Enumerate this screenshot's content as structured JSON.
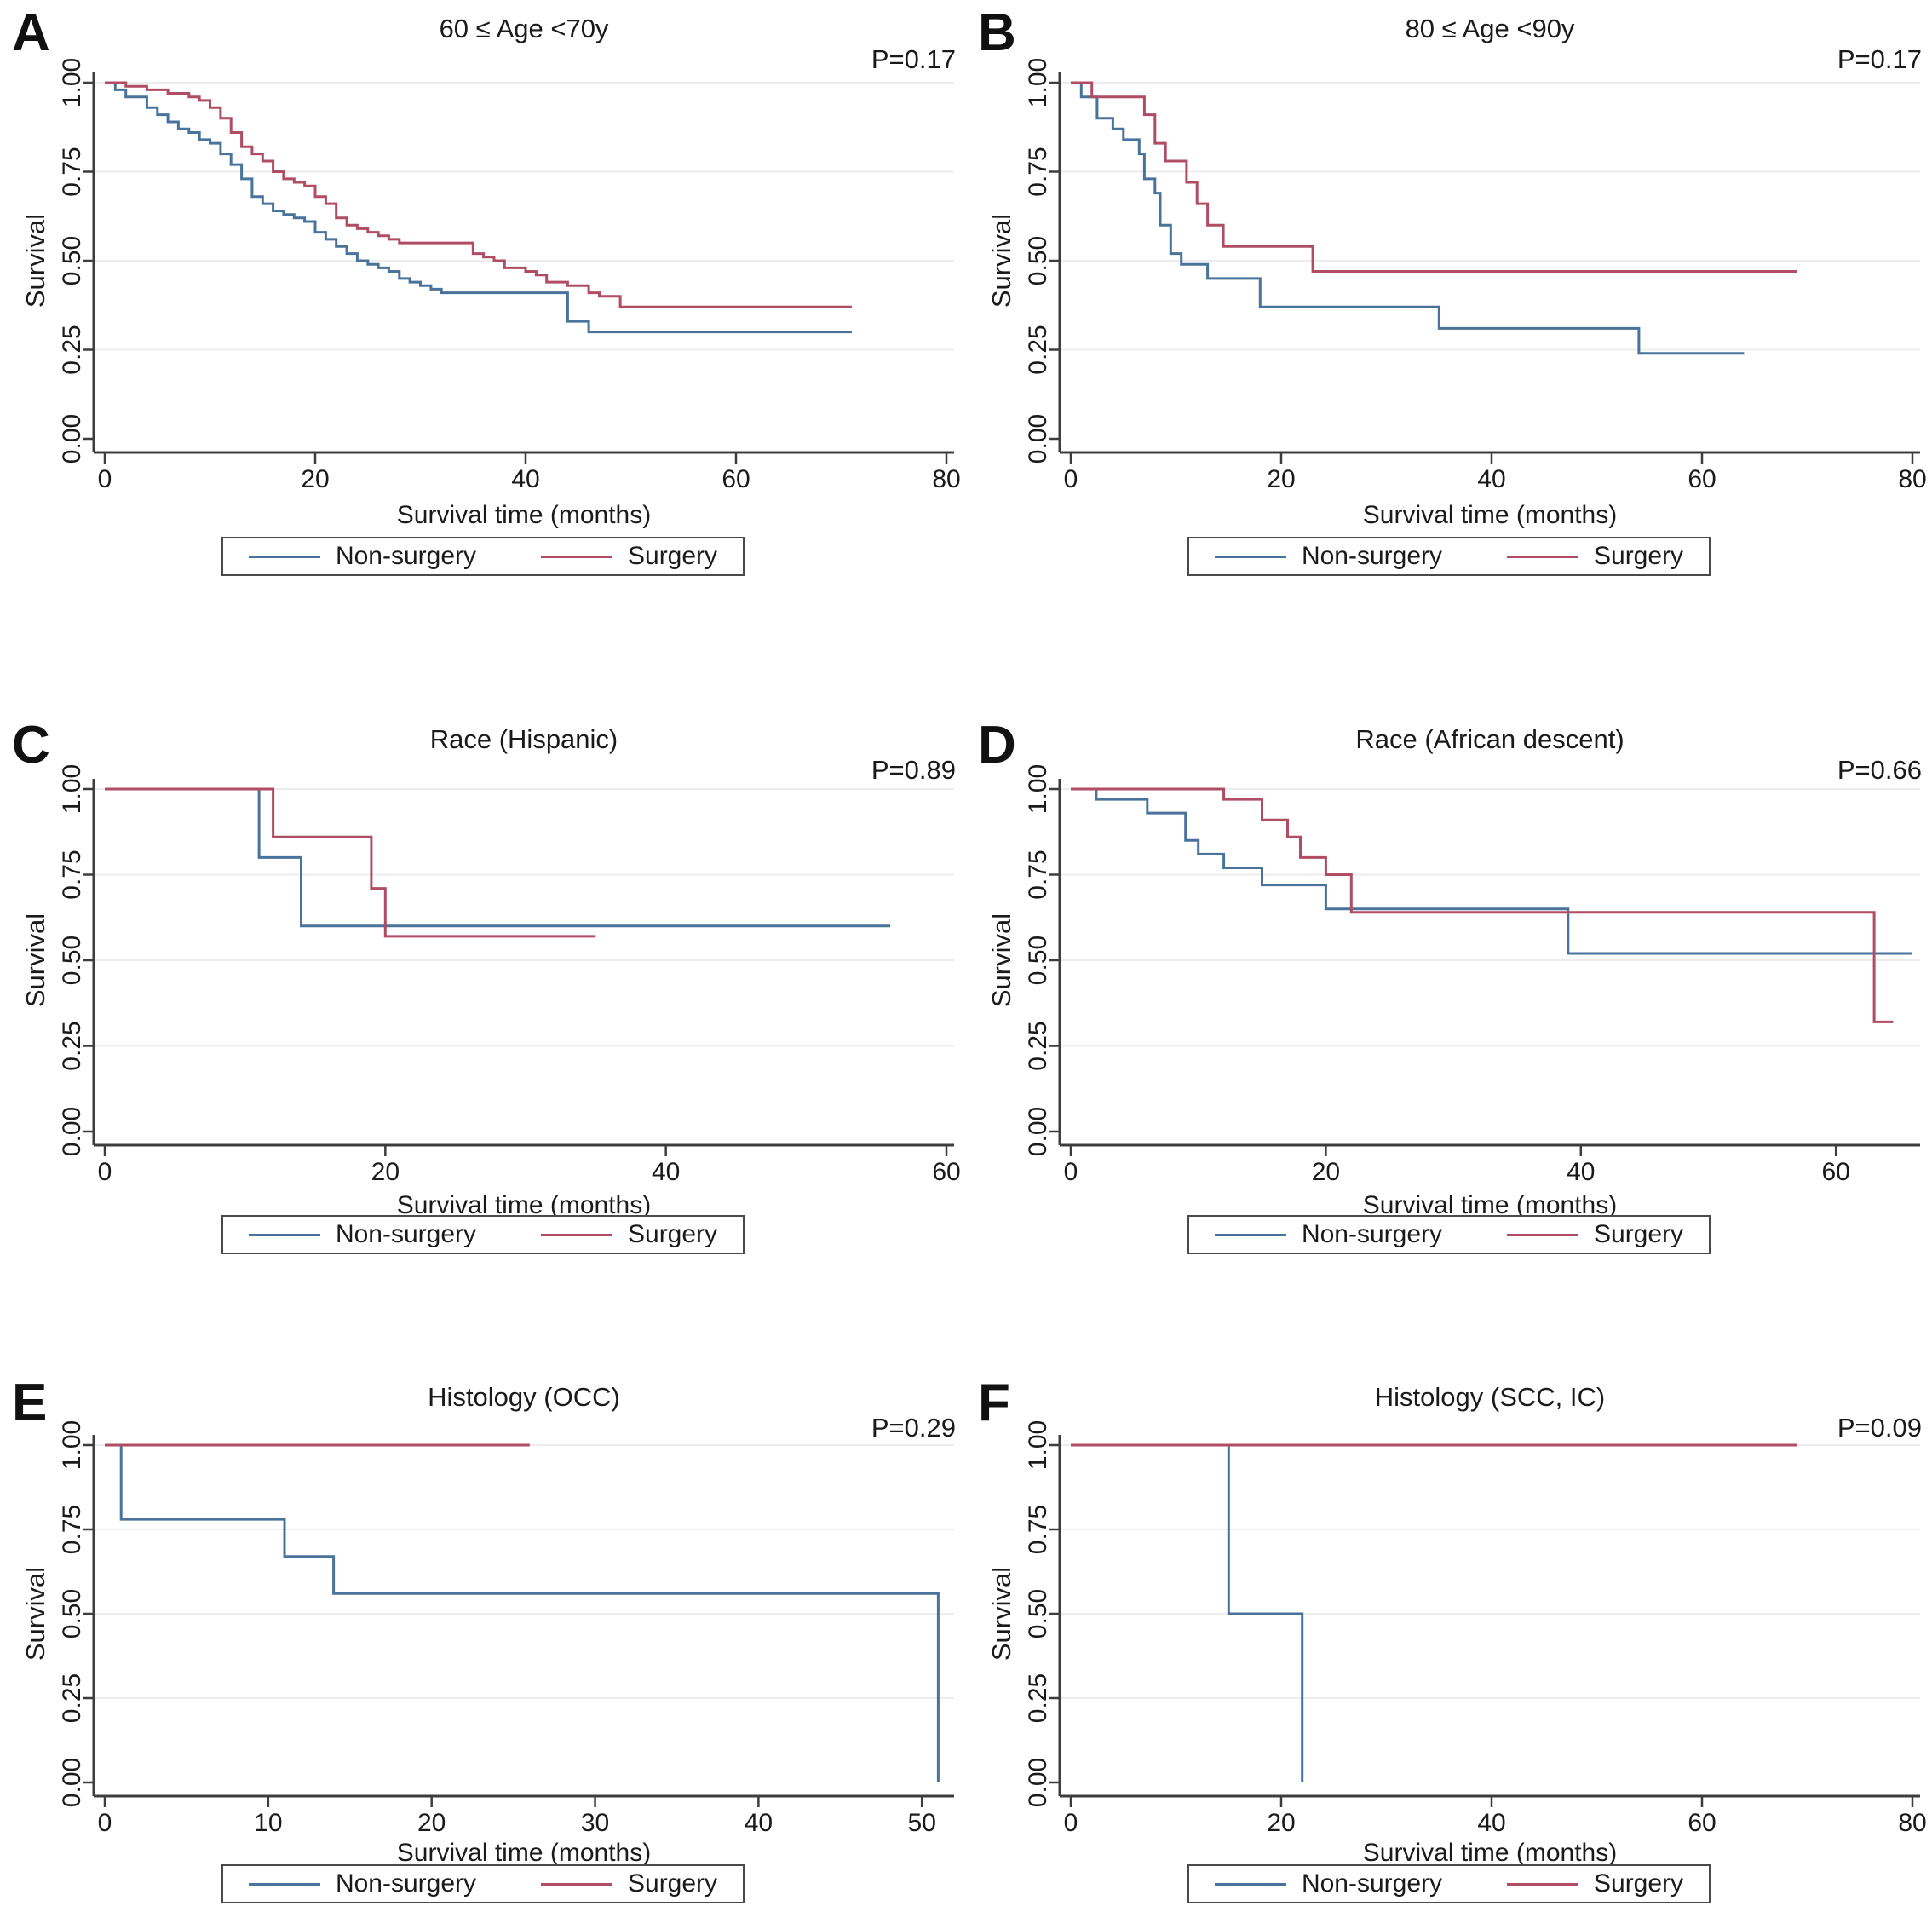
{
  "figure": {
    "description": "Kaplan-Meier survival curves comparing Non-surgery vs Surgery subgroups"
  },
  "legend": {
    "items": [
      {
        "label": "Non-surgery",
        "color": "#49739b"
      },
      {
        "label": "Surgery",
        "color": "#b04d64"
      }
    ]
  },
  "colors": {
    "non_surgery": "#49739b",
    "surgery": "#b04d64",
    "grid": "#ededed",
    "axis": "#3d3d3d",
    "text": "#1a1a1a"
  },
  "chart_data": [
    {
      "type": "line",
      "panel_label": "A",
      "title": "60 ≤ Age <70y",
      "p_value": "P=0.17",
      "xlabel": "Survival time (months)",
      "ylabel": "Survival",
      "xlim": [
        0,
        80
      ],
      "ylim": [
        0,
        1
      ],
      "xticks": [
        0,
        20,
        40,
        60,
        80
      ],
      "yticks": [
        "0.00",
        "0.25",
        "0.50",
        "0.75",
        "1.00"
      ],
      "grid": "horizontal",
      "legend_position": "bottom",
      "series": [
        {
          "name": "Non-surgery",
          "color": "#49739b",
          "points": [
            [
              0,
              1.0
            ],
            [
              1,
              0.98
            ],
            [
              2,
              0.96
            ],
            [
              4,
              0.93
            ],
            [
              5,
              0.91
            ],
            [
              6,
              0.89
            ],
            [
              7,
              0.87
            ],
            [
              8,
              0.86
            ],
            [
              9,
              0.84
            ],
            [
              10,
              0.83
            ],
            [
              11,
              0.8
            ],
            [
              12,
              0.77
            ],
            [
              13,
              0.73
            ],
            [
              14,
              0.68
            ],
            [
              15,
              0.66
            ],
            [
              16,
              0.64
            ],
            [
              17,
              0.63
            ],
            [
              18,
              0.62
            ],
            [
              19,
              0.61
            ],
            [
              20,
              0.58
            ],
            [
              21,
              0.56
            ],
            [
              22,
              0.54
            ],
            [
              23,
              0.52
            ],
            [
              24,
              0.5
            ],
            [
              25,
              0.49
            ],
            [
              26,
              0.48
            ],
            [
              27,
              0.47
            ],
            [
              28,
              0.45
            ],
            [
              29,
              0.44
            ],
            [
              30,
              0.43
            ],
            [
              31,
              0.42
            ],
            [
              32,
              0.41
            ],
            [
              44,
              0.33
            ],
            [
              46,
              0.3
            ],
            [
              71,
              0.3
            ]
          ]
        },
        {
          "name": "Surgery",
          "color": "#b04d64",
          "points": [
            [
              0,
              1.0
            ],
            [
              2,
              0.99
            ],
            [
              4,
              0.98
            ],
            [
              6,
              0.97
            ],
            [
              8,
              0.96
            ],
            [
              9,
              0.95
            ],
            [
              10,
              0.93
            ],
            [
              11,
              0.9
            ],
            [
              12,
              0.86
            ],
            [
              13,
              0.82
            ],
            [
              14,
              0.8
            ],
            [
              15,
              0.78
            ],
            [
              16,
              0.75
            ],
            [
              17,
              0.73
            ],
            [
              18,
              0.72
            ],
            [
              19,
              0.71
            ],
            [
              20,
              0.68
            ],
            [
              21,
              0.66
            ],
            [
              22,
              0.62
            ],
            [
              23,
              0.6
            ],
            [
              24,
              0.59
            ],
            [
              25,
              0.58
            ],
            [
              26,
              0.57
            ],
            [
              27,
              0.56
            ],
            [
              28,
              0.55
            ],
            [
              35,
              0.52
            ],
            [
              36,
              0.51
            ],
            [
              37,
              0.5
            ],
            [
              38,
              0.48
            ],
            [
              40,
              0.47
            ],
            [
              41,
              0.46
            ],
            [
              42,
              0.44
            ],
            [
              44,
              0.43
            ],
            [
              46,
              0.41
            ],
            [
              47,
              0.4
            ],
            [
              49,
              0.37
            ],
            [
              71,
              0.37
            ]
          ]
        }
      ]
    },
    {
      "type": "line",
      "panel_label": "B",
      "title": "80 ≤ Age <90y",
      "p_value": "P=0.17",
      "xlabel": "Survival time (months)",
      "ylabel": "Survival",
      "xlim": [
        0,
        80
      ],
      "ylim": [
        0,
        1
      ],
      "xticks": [
        0,
        20,
        40,
        60,
        80
      ],
      "yticks": [
        "0.00",
        "0.25",
        "0.50",
        "0.75",
        "1.00"
      ],
      "grid": "horizontal",
      "legend_position": "bottom",
      "series": [
        {
          "name": "Non-surgery",
          "color": "#49739b",
          "points": [
            [
              0,
              1.0
            ],
            [
              1,
              0.96
            ],
            [
              2.5,
              0.9
            ],
            [
              4,
              0.87
            ],
            [
              5,
              0.84
            ],
            [
              6.5,
              0.8
            ],
            [
              7,
              0.73
            ],
            [
              8,
              0.69
            ],
            [
              8.5,
              0.6
            ],
            [
              9.5,
              0.52
            ],
            [
              10.5,
              0.49
            ],
            [
              13,
              0.45
            ],
            [
              18,
              0.37
            ],
            [
              35,
              0.31
            ],
            [
              54,
              0.24
            ],
            [
              64,
              0.24
            ]
          ]
        },
        {
          "name": "Surgery",
          "color": "#b04d64",
          "points": [
            [
              0,
              1.0
            ],
            [
              2,
              0.96
            ],
            [
              7,
              0.91
            ],
            [
              8,
              0.83
            ],
            [
              9,
              0.78
            ],
            [
              11,
              0.72
            ],
            [
              12,
              0.66
            ],
            [
              13,
              0.6
            ],
            [
              14.5,
              0.54
            ],
            [
              23,
              0.47
            ],
            [
              69,
              0.47
            ]
          ]
        }
      ]
    },
    {
      "type": "line",
      "panel_label": "C",
      "title": "Race (Hispanic)",
      "p_value": "P=0.89",
      "xlabel": "Survival time (months)",
      "ylabel": "Survival",
      "xlim": [
        0,
        60
      ],
      "ylim": [
        0,
        1
      ],
      "xticks": [
        0,
        20,
        40,
        60
      ],
      "yticks": [
        "0.00",
        "0.25",
        "0.50",
        "0.75",
        "1.00"
      ],
      "grid": "horizontal",
      "legend_position": "bottom",
      "series": [
        {
          "name": "Non-surgery",
          "color": "#49739b",
          "points": [
            [
              0,
              1.0
            ],
            [
              11,
              0.8
            ],
            [
              14,
              0.6
            ],
            [
              56,
              0.6
            ]
          ]
        },
        {
          "name": "Surgery",
          "color": "#b04d64",
          "points": [
            [
              0,
              1.0
            ],
            [
              12,
              0.86
            ],
            [
              19,
              0.71
            ],
            [
              20,
              0.57
            ],
            [
              35,
              0.57
            ]
          ]
        }
      ]
    },
    {
      "type": "line",
      "panel_label": "D",
      "title": "Race (African descent)",
      "p_value": "P=0.66",
      "xlabel": "Survival time (months)",
      "ylabel": "Survival",
      "xlim": [
        0,
        66
      ],
      "ylim": [
        0,
        1
      ],
      "xticks": [
        0,
        20,
        40,
        60
      ],
      "yticks": [
        "0.00",
        "0.25",
        "0.50",
        "0.75",
        "1.00"
      ],
      "grid": "horizontal",
      "legend_position": "bottom",
      "series": [
        {
          "name": "Non-surgery",
          "color": "#49739b",
          "points": [
            [
              0,
              1.0
            ],
            [
              2,
              0.97
            ],
            [
              6,
              0.93
            ],
            [
              9,
              0.85
            ],
            [
              10,
              0.81
            ],
            [
              12,
              0.77
            ],
            [
              15,
              0.72
            ],
            [
              20,
              0.65
            ],
            [
              39,
              0.52
            ],
            [
              66,
              0.52
            ]
          ]
        },
        {
          "name": "Surgery",
          "color": "#b04d64",
          "points": [
            [
              0,
              1.0
            ],
            [
              12,
              0.97
            ],
            [
              15,
              0.91
            ],
            [
              17,
              0.86
            ],
            [
              18,
              0.8
            ],
            [
              20,
              0.75
            ],
            [
              22,
              0.64
            ],
            [
              63,
              0.32
            ],
            [
              64.5,
              0.32
            ]
          ]
        }
      ]
    },
    {
      "type": "line",
      "panel_label": "E",
      "title": "Histology (OCC)",
      "p_value": "P=0.29",
      "xlabel": "Survival time (months)",
      "ylabel": "Survival",
      "xlim": [
        0,
        51.5
      ],
      "ylim": [
        0,
        1
      ],
      "xticks": [
        0,
        10,
        20,
        30,
        40,
        50
      ],
      "yticks": [
        "0.00",
        "0.25",
        "0.50",
        "0.75",
        "1.00"
      ],
      "grid": "horizontal",
      "legend_position": "bottom",
      "series": [
        {
          "name": "Non-surgery",
          "color": "#49739b",
          "points": [
            [
              0,
              1.0
            ],
            [
              1,
              0.78
            ],
            [
              11,
              0.67
            ],
            [
              14,
              0.56
            ],
            [
              51,
              0.0
            ]
          ]
        },
        {
          "name": "Surgery",
          "color": "#b04d64",
          "points": [
            [
              0,
              1.0
            ],
            [
              26,
              1.0
            ]
          ]
        }
      ]
    },
    {
      "type": "line",
      "panel_label": "F",
      "title": "Histology (SCC, IC)",
      "p_value": "P=0.09",
      "xlabel": "Survival time (months)",
      "ylabel": "Survival",
      "xlim": [
        0,
        80
      ],
      "ylim": [
        0,
        1
      ],
      "xticks": [
        0,
        20,
        40,
        60,
        80
      ],
      "yticks": [
        "0.00",
        "0.25",
        "0.50",
        "0.75",
        "1.00"
      ],
      "grid": "horizontal",
      "legend_position": "bottom",
      "series": [
        {
          "name": "Non-surgery",
          "color": "#49739b",
          "points": [
            [
              0,
              1.0
            ],
            [
              15,
              0.5
            ],
            [
              22,
              0.0
            ]
          ]
        },
        {
          "name": "Surgery",
          "color": "#b04d64",
          "points": [
            [
              0,
              1.0
            ],
            [
              69,
              1.0
            ]
          ]
        }
      ]
    }
  ]
}
